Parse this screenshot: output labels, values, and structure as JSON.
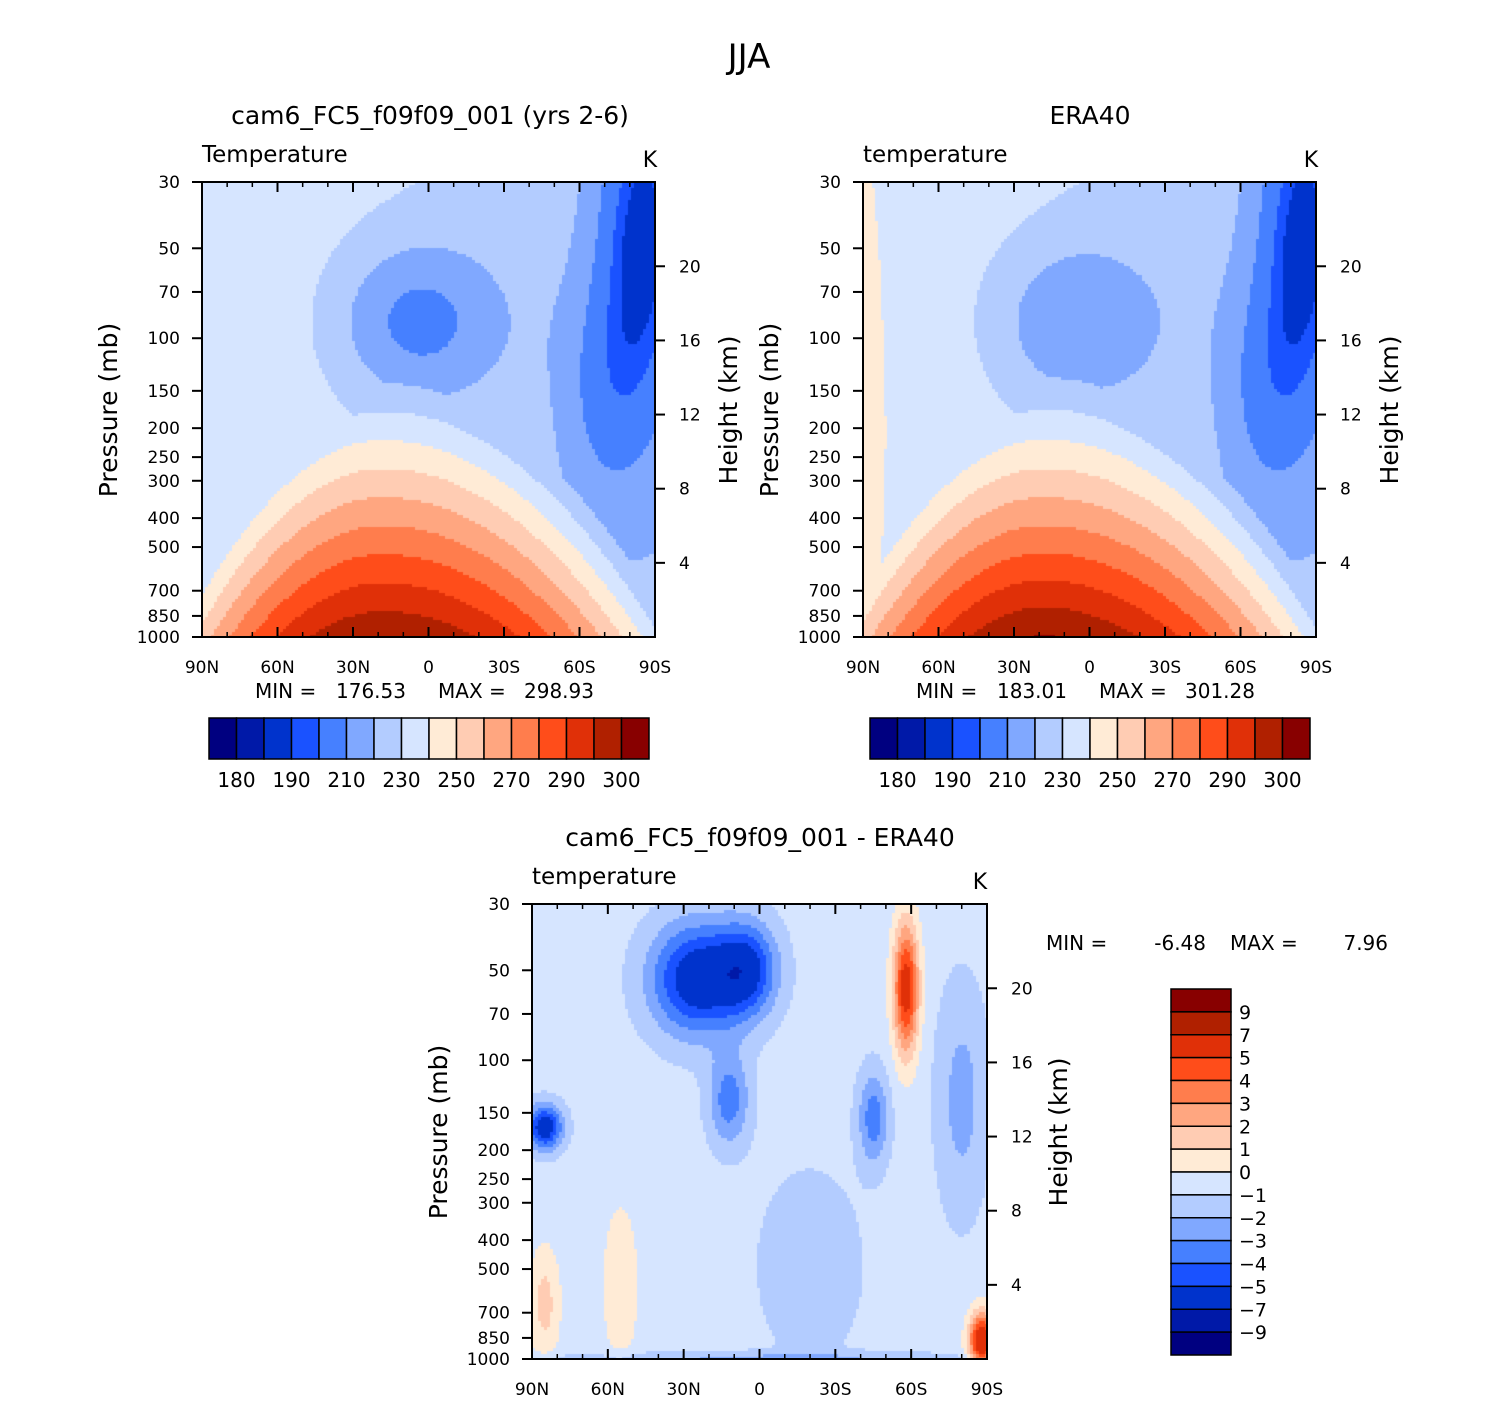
{
  "page_title": "JJA",
  "colors": {
    "full_field": [
      "#000080",
      "#0019a8",
      "#0033cc",
      "#1a52ff",
      "#4680ff",
      "#80a8ff",
      "#b3ccff",
      "#d6e5ff",
      "#ffebd6",
      "#ffccb3",
      "#ffa680",
      "#ff7d4d",
      "#ff4d1a",
      "#e03008",
      "#b02000",
      "#880000"
    ],
    "difference": [
      "#000080",
      "#0019a8",
      "#0033cc",
      "#1a52ff",
      "#4680ff",
      "#80a8ff",
      "#b3ccff",
      "#d6e5ff",
      "#ffebd6",
      "#ffccb3",
      "#ffa680",
      "#ff7d4d",
      "#ff4d1a",
      "#e03008",
      "#b02000",
      "#880000"
    ]
  },
  "chart_data": [
    {
      "type": "heatmap",
      "title": "cam6_FC5_f09f09_001 (yrs 2-6)",
      "left_label": "Temperature",
      "units": "K",
      "ylabel": "Pressure (mb)",
      "ylabel_right": "Height (km)",
      "x_ticks": [
        "90N",
        "60N",
        "30N",
        "0",
        "30S",
        "60S",
        "90S"
      ],
      "y_ticks": [
        "30",
        "50",
        "70",
        "100",
        "150",
        "200",
        "250",
        "300",
        "400",
        "500",
        "700",
        "850",
        "1000"
      ],
      "y_ticks_right": [
        "20",
        "16",
        "12",
        "8",
        "4"
      ],
      "ylim": [
        1000,
        30
      ],
      "y_scale": "log",
      "min_label": "MIN =",
      "min_value": "176.53",
      "max_label": "MAX =",
      "max_value": "298.93",
      "colorbar_labels": [
        "180",
        "190",
        "210",
        "230",
        "250",
        "270",
        "290",
        "300"
      ]
    },
    {
      "type": "heatmap",
      "title": "ERA40",
      "left_label": "temperature",
      "units": "K",
      "ylabel": "Pressure (mb)",
      "ylabel_right": "Height (km)",
      "x_ticks": [
        "90N",
        "60N",
        "30N",
        "0",
        "30S",
        "60S",
        "90S"
      ],
      "y_ticks": [
        "30",
        "50",
        "70",
        "100",
        "150",
        "200",
        "250",
        "300",
        "400",
        "500",
        "700",
        "850",
        "1000"
      ],
      "y_ticks_right": [
        "20",
        "16",
        "12",
        "8",
        "4"
      ],
      "ylim": [
        1000,
        30
      ],
      "y_scale": "log",
      "min_label": "MIN =",
      "min_value": "183.01",
      "max_label": "MAX =",
      "max_value": "301.28",
      "colorbar_labels": [
        "180",
        "190",
        "210",
        "230",
        "250",
        "270",
        "290",
        "300"
      ]
    },
    {
      "type": "heatmap",
      "title": "cam6_FC5_f09f09_001 - ERA40",
      "left_label": "temperature",
      "units": "K",
      "ylabel": "Pressure (mb)",
      "ylabel_right": "Height (km)",
      "x_ticks": [
        "90N",
        "60N",
        "30N",
        "0",
        "30S",
        "60S",
        "90S"
      ],
      "y_ticks": [
        "30",
        "50",
        "70",
        "100",
        "150",
        "200",
        "250",
        "300",
        "400",
        "500",
        "700",
        "850",
        "1000"
      ],
      "y_ticks_right": [
        "20",
        "16",
        "12",
        "8",
        "4"
      ],
      "ylim": [
        1000,
        30
      ],
      "y_scale": "log",
      "min_label": "MIN =",
      "min_value": "-6.48",
      "max_label": "MAX =",
      "max_value": "7.96",
      "colorbar_labels": [
        "9",
        "7",
        "5",
        "4",
        "3",
        "2",
        "1",
        "0",
        "-1",
        "-2",
        "-3",
        "-4",
        "-5",
        "-7",
        "-9"
      ]
    }
  ]
}
